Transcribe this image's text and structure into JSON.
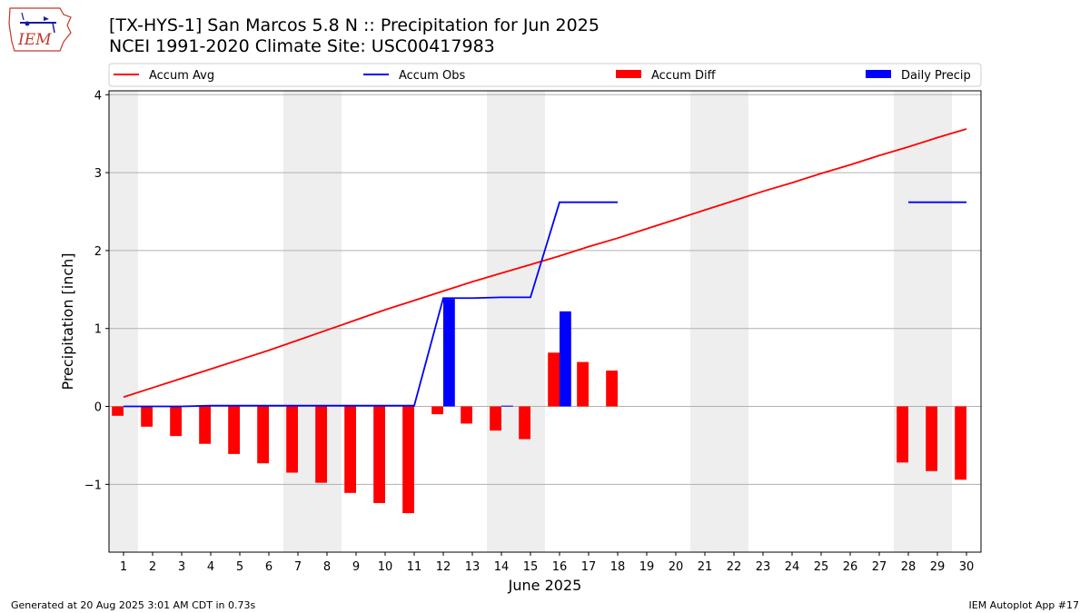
{
  "title_line1": "[TX-HYS-1] San Marcos 5.8 N :: Precipitation for Jun 2025",
  "title_line2": "NCEI 1991-2020 Climate Site: USC00417983",
  "logo_text": "IEM",
  "footer_left": "Generated at 20 Aug 2025 3:01 AM CDT in 0.73s",
  "footer_right": "IEM Autoplot App #17",
  "colors": {
    "accum_avg": "#ff0000",
    "accum_obs": "#0000ff",
    "accum_diff": "#ff0000",
    "daily_precip": "#0000ff",
    "weekend_shade": "#eeeeee",
    "grid": "#b0b0b0"
  },
  "chart_data": {
    "type": "bar",
    "xlabel": "June 2025",
    "ylabel": "Precipitation [inch]",
    "xlim": [
      0.5,
      30.5
    ],
    "ylim": [
      -1.87,
      4.05
    ],
    "yticks": [
      -1,
      0,
      1,
      2,
      3,
      4
    ],
    "grid": "horizontal",
    "legend_placement": "top",
    "legend": [
      "Accum Avg",
      "Accum Obs",
      "Accum Diff",
      "Daily Precip"
    ],
    "days": [
      1,
      2,
      3,
      4,
      5,
      6,
      7,
      8,
      9,
      10,
      11,
      12,
      13,
      14,
      15,
      16,
      17,
      18,
      19,
      20,
      21,
      22,
      23,
      24,
      25,
      26,
      27,
      28,
      29,
      30
    ],
    "weekend_days": [
      1,
      7,
      8,
      14,
      15,
      21,
      22,
      28,
      29
    ],
    "series": [
      {
        "name": "Accum Avg",
        "kind": "line",
        "values": [
          0.12,
          0.24,
          0.36,
          0.48,
          0.6,
          0.72,
          0.85,
          0.98,
          1.11,
          1.24,
          1.36,
          1.48,
          1.6,
          1.71,
          1.82,
          1.93,
          2.05,
          2.16,
          2.28,
          2.4,
          2.52,
          2.64,
          2.76,
          2.87,
          2.99,
          3.1,
          3.22,
          3.33,
          3.45,
          3.56
        ]
      },
      {
        "name": "Accum Obs",
        "kind": "line",
        "values": [
          0.0,
          0.0,
          0.0,
          0.01,
          0.01,
          0.01,
          0.01,
          0.01,
          0.01,
          0.01,
          0.01,
          1.39,
          1.39,
          1.4,
          1.4,
          2.62,
          2.62,
          2.62,
          null,
          null,
          null,
          null,
          null,
          null,
          null,
          null,
          null,
          2.62,
          2.62,
          2.62
        ]
      },
      {
        "name": "Accum Diff",
        "kind": "bar",
        "values": [
          -0.12,
          -0.26,
          -0.38,
          -0.48,
          -0.61,
          -0.73,
          -0.85,
          -0.98,
          -1.11,
          -1.24,
          -1.37,
          -0.1,
          -0.22,
          -0.31,
          -0.42,
          0.69,
          0.57,
          0.46,
          null,
          null,
          null,
          null,
          null,
          null,
          null,
          null,
          null,
          -0.72,
          -0.83,
          -0.94
        ]
      },
      {
        "name": "Daily Precip",
        "kind": "bar",
        "values": [
          0,
          0,
          0,
          0,
          0,
          0,
          0,
          0,
          0,
          0,
          0,
          1.38,
          0,
          0.01,
          0,
          1.22,
          0,
          0,
          null,
          null,
          null,
          null,
          null,
          null,
          null,
          null,
          null,
          0,
          0,
          0
        ]
      }
    ]
  }
}
